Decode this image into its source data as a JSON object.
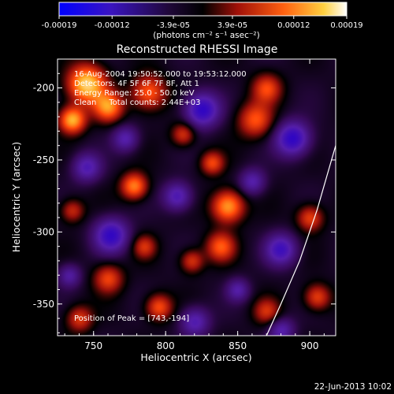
{
  "chart_data": {
    "type": "heatmap",
    "title": "Reconstructed RHESSI Image",
    "xlabel": "Heliocentric X (arcsec)",
    "ylabel": "Heliocentric Y (arcsec)",
    "xlim": [
      725,
      918
    ],
    "ylim": [
      -372,
      -180
    ],
    "x_ticks": [
      "750",
      "800",
      "850",
      "900"
    ],
    "x_tick_values": [
      750,
      800,
      850,
      900
    ],
    "y_ticks": [
      "-200",
      "-250",
      "-300",
      "-350"
    ],
    "y_tick_values": [
      -200,
      -250,
      -300,
      -350
    ],
    "colorbar": {
      "range": [
        -0.00019,
        0.00019
      ],
      "tick_labels": [
        "-0.00019",
        "-0.00012",
        "-3.9e-05",
        "3.9e-05",
        "0.00012",
        "0.00019"
      ],
      "tick_values": [
        -0.00019,
        -0.00012,
        -3.9e-05,
        3.9e-05,
        0.00012,
        0.00019
      ],
      "units_label": "(photons cm⁻² s⁻¹ asec⁻²)",
      "colors": [
        "#0000ff",
        "#5010b0",
        "#000000",
        "#c01810",
        "#ff6a10",
        "#ffd040",
        "#ffffff"
      ]
    },
    "annotations": [
      "16-Aug-2004 19:50:52.000 to 19:53:12.000",
      "Detectors: 4F 5F 6F 7F 8F, Att 1",
      "Energy Range: 25.0 - 50.0 keV",
      "Clean     Total counts: 2.44E+03"
    ],
    "peak_label": "Position of Peak = [743,-194]",
    "peak_position": [
      743,
      -194
    ],
    "limb_points": [
      [
        870,
        -372
      ],
      [
        880,
        -350
      ],
      [
        893,
        -320
      ],
      [
        905,
        -285
      ],
      [
        918,
        -240
      ]
    ],
    "hot_sources": [
      {
        "x": 745,
        "y": -197,
        "amp": 1.0,
        "r": 13
      },
      {
        "x": 735,
        "y": -222,
        "amp": 0.9,
        "r": 9
      },
      {
        "x": 760,
        "y": -213,
        "amp": 0.75,
        "r": 10
      },
      {
        "x": 788,
        "y": -203,
        "amp": 0.65,
        "r": 12
      },
      {
        "x": 778,
        "y": -268,
        "amp": 0.75,
        "r": 9
      },
      {
        "x": 843,
        "y": -282,
        "amp": 0.85,
        "r": 11
      },
      {
        "x": 838,
        "y": -310,
        "amp": 0.6,
        "r": 10
      },
      {
        "x": 832,
        "y": -252,
        "amp": 0.55,
        "r": 8
      },
      {
        "x": 862,
        "y": -222,
        "amp": 0.6,
        "r": 12
      },
      {
        "x": 870,
        "y": -200,
        "amp": 0.55,
        "r": 10
      },
      {
        "x": 812,
        "y": -232,
        "amp": 0.5,
        "r": 8
      },
      {
        "x": 900,
        "y": -290,
        "amp": 0.55,
        "r": 9
      },
      {
        "x": 905,
        "y": -345,
        "amp": 0.55,
        "r": 9
      },
      {
        "x": 760,
        "y": -332,
        "amp": 0.55,
        "r": 10
      },
      {
        "x": 740,
        "y": -360,
        "amp": 0.5,
        "r": 9
      },
      {
        "x": 795,
        "y": -352,
        "amp": 0.6,
        "r": 9
      },
      {
        "x": 785,
        "y": -310,
        "amp": 0.45,
        "r": 8
      },
      {
        "x": 818,
        "y": -320,
        "amp": 0.5,
        "r": 8
      },
      {
        "x": 870,
        "y": -355,
        "amp": 0.45,
        "r": 9
      },
      {
        "x": 735,
        "y": -285,
        "amp": 0.45,
        "r": 8
      }
    ],
    "cold_sources": [
      {
        "x": 825,
        "y": -215,
        "amp": 0.8,
        "r": 12
      },
      {
        "x": 888,
        "y": -235,
        "amp": 0.8,
        "r": 12
      },
      {
        "x": 762,
        "y": -302,
        "amp": 0.75,
        "r": 12
      },
      {
        "x": 808,
        "y": -275,
        "amp": 0.6,
        "r": 10
      },
      {
        "x": 880,
        "y": -312,
        "amp": 0.65,
        "r": 11
      },
      {
        "x": 745,
        "y": -255,
        "amp": 0.55,
        "r": 10
      },
      {
        "x": 860,
        "y": -265,
        "amp": 0.5,
        "r": 9
      },
      {
        "x": 772,
        "y": -235,
        "amp": 0.5,
        "r": 9
      },
      {
        "x": 820,
        "y": -362,
        "amp": 0.55,
        "r": 10
      },
      {
        "x": 880,
        "y": -368,
        "amp": 0.5,
        "r": 9
      },
      {
        "x": 850,
        "y": -340,
        "amp": 0.45,
        "r": 8
      },
      {
        "x": 733,
        "y": -330,
        "amp": 0.45,
        "r": 8
      }
    ]
  },
  "footer": {
    "timestamp": "22-Jun-2013 10:02"
  }
}
